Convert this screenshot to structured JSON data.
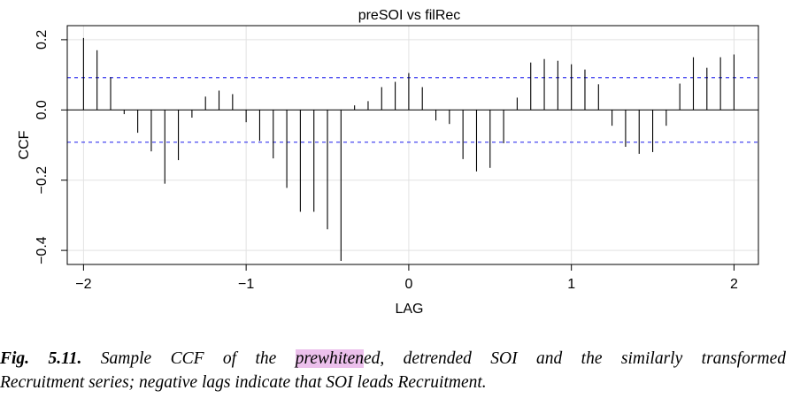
{
  "chart_data": {
    "type": "stem",
    "title": "preSOI vs filRec",
    "xlabel": "LAG",
    "ylabel": "CCF",
    "xlim": [
      -2.1,
      2.15
    ],
    "ylim": [
      -0.44,
      0.24
    ],
    "x_ticks": [
      -2,
      -1,
      0,
      1,
      2
    ],
    "x_tick_labels": [
      "−2",
      "−1",
      "0",
      "1",
      "2"
    ],
    "y_ticks": [
      0.2,
      0.0,
      -0.2,
      -0.4
    ],
    "y_tick_labels": [
      "0.2",
      "0.0",
      "−0.2",
      "−0.4"
    ],
    "grid": true,
    "confidence_bound": 0.092,
    "bound_color": "#3333ee",
    "lags": [
      -2.0,
      -1.9167,
      -1.8333,
      -1.75,
      -1.6667,
      -1.5833,
      -1.5,
      -1.4167,
      -1.3333,
      -1.25,
      -1.1667,
      -1.0833,
      -1.0,
      -0.9167,
      -0.8333,
      -0.75,
      -0.6667,
      -0.5833,
      -0.5,
      -0.4167,
      -0.3333,
      -0.25,
      -0.1667,
      -0.0833,
      0.0,
      0.0833,
      0.1667,
      0.25,
      0.3333,
      0.4167,
      0.5,
      0.5833,
      0.6667,
      0.75,
      0.8333,
      0.9167,
      1.0,
      1.0833,
      1.1667,
      1.25,
      1.3333,
      1.4167,
      1.5,
      1.5833,
      1.6667,
      1.75,
      1.8333,
      1.9167,
      2.0
    ],
    "ccf": [
      0.205,
      0.17,
      0.093,
      -0.012,
      -0.065,
      -0.118,
      -0.21,
      -0.143,
      -0.022,
      0.038,
      0.055,
      0.045,
      -0.035,
      -0.088,
      -0.138,
      -0.222,
      -0.29,
      -0.29,
      -0.34,
      -0.43,
      0.013,
      0.025,
      0.065,
      0.08,
      0.105,
      0.065,
      -0.03,
      -0.04,
      -0.14,
      -0.175,
      -0.165,
      -0.095,
      0.035,
      0.135,
      0.145,
      0.14,
      0.13,
      0.115,
      0.073,
      -0.045,
      -0.105,
      -0.125,
      -0.12,
      -0.045,
      0.075,
      0.15,
      0.12,
      0.15,
      0.158
    ]
  },
  "caption": {
    "label": "Fig. 5.11.",
    "text_before": "Sample CCF of the ",
    "highlight": "prewhiten",
    "text_after": "ed, detrended SOI and the similarly transformed",
    "line2": "Recruitment series; negative lags indicate that SOI leads Recruitment."
  }
}
